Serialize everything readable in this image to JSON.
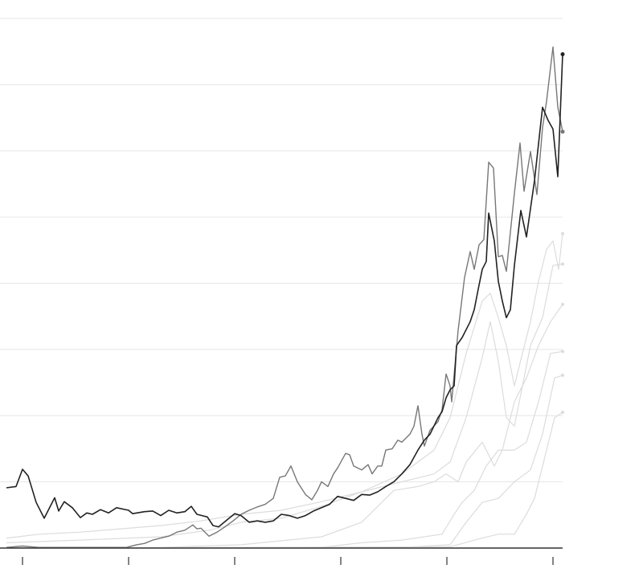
{
  "chart_data": {
    "type": "line",
    "title": "",
    "xlabel": "",
    "ylabel": "",
    "xlim": [
      0,
      692
    ],
    "ylim": [
      0,
      80
    ],
    "x_ticks": [
      20,
      152,
      284,
      416,
      548,
      680
    ],
    "x_tick_labels": [],
    "y_gridlines": [
      10,
      20,
      30,
      40,
      50,
      60,
      70,
      80
    ],
    "y_tick_labels": [],
    "grid": true,
    "legend": "none",
    "colors": {
      "highlight_primary": "#222222",
      "highlight_secondary": "#777777",
      "background_series": "#dcdcdc",
      "grid": "#e6e6e6",
      "baseline": "#333333"
    },
    "series": [
      {
        "role": "background",
        "points": [
          [
            0,
            1.5
          ],
          [
            42,
            2.1
          ],
          [
            92,
            2.4
          ],
          [
            142,
            2.9
          ],
          [
            192,
            3.4
          ],
          [
            242,
            4.1
          ],
          [
            292,
            5.1
          ],
          [
            342,
            5.7
          ],
          [
            392,
            7.0
          ],
          [
            442,
            8.5
          ],
          [
            492,
            11.2
          ],
          [
            532,
            14.8
          ],
          [
            552,
            19.7
          ],
          [
            572,
            29.4
          ],
          [
            592,
            37.3
          ],
          [
            602,
            38.5
          ],
          [
            612,
            34.8
          ],
          [
            622,
            30.6
          ],
          [
            632,
            24.5
          ],
          [
            642,
            29.4
          ],
          [
            652,
            34.2
          ],
          [
            662,
            40.3
          ],
          [
            672,
            45.1
          ],
          [
            680,
            46.4
          ],
          [
            687,
            42.1
          ],
          [
            692,
            47.5
          ]
        ]
      },
      {
        "role": "background",
        "points": [
          [
            0,
            0.8
          ],
          [
            92,
            1.2
          ],
          [
            192,
            1.7
          ],
          [
            252,
            2.7
          ],
          [
            292,
            3.9
          ],
          [
            342,
            4.5
          ],
          [
            392,
            6.3
          ],
          [
            442,
            8.5
          ],
          [
            492,
            10.0
          ],
          [
            512,
            10.6
          ],
          [
            532,
            11.2
          ],
          [
            552,
            13.0
          ],
          [
            572,
            19.7
          ],
          [
            592,
            28.8
          ],
          [
            602,
            34.2
          ],
          [
            612,
            28.2
          ],
          [
            622,
            19.7
          ],
          [
            632,
            18.4
          ],
          [
            642,
            24.5
          ],
          [
            652,
            30.6
          ],
          [
            667,
            34.8
          ],
          [
            680,
            42.7
          ],
          [
            692,
            42.9
          ]
        ]
      },
      {
        "role": "background",
        "points": [
          [
            0,
            0
          ],
          [
            192,
            0.1
          ],
          [
            292,
            0.5
          ],
          [
            392,
            1.7
          ],
          [
            442,
            3.9
          ],
          [
            482,
            8.7
          ],
          [
            512,
            9.3
          ],
          [
            532,
            10.0
          ],
          [
            547,
            11.2
          ],
          [
            562,
            10.0
          ],
          [
            572,
            13.0
          ],
          [
            592,
            16.0
          ],
          [
            607,
            12.4
          ],
          [
            617,
            14.8
          ],
          [
            632,
            22.1
          ],
          [
            647,
            25.7
          ],
          [
            662,
            30.6
          ],
          [
            677,
            34.2
          ],
          [
            692,
            36.8
          ]
        ]
      },
      {
        "role": "background",
        "points": [
          [
            0,
            0
          ],
          [
            392,
            0.1
          ],
          [
            442,
            0.8
          ],
          [
            492,
            1.2
          ],
          [
            542,
            2.1
          ],
          [
            557,
            5.1
          ],
          [
            567,
            6.9
          ],
          [
            582,
            8.7
          ],
          [
            597,
            12.4
          ],
          [
            612,
            14.8
          ],
          [
            632,
            14.8
          ],
          [
            647,
            16.0
          ],
          [
            662,
            22.1
          ],
          [
            677,
            29.4
          ],
          [
            692,
            29.7
          ]
        ]
      },
      {
        "role": "background",
        "points": [
          [
            0,
            0
          ],
          [
            492,
            0.1
          ],
          [
            552,
            0.5
          ],
          [
            572,
            3.9
          ],
          [
            592,
            6.9
          ],
          [
            612,
            7.5
          ],
          [
            632,
            10.0
          ],
          [
            652,
            11.8
          ],
          [
            667,
            17.2
          ],
          [
            682,
            25.7
          ],
          [
            692,
            26.1
          ]
        ]
      },
      {
        "role": "background",
        "points": [
          [
            0,
            0
          ],
          [
            552,
            0.2
          ],
          [
            592,
            1.5
          ],
          [
            612,
            2.1
          ],
          [
            632,
            2.1
          ],
          [
            647,
            5.1
          ],
          [
            657,
            7.5
          ],
          [
            672,
            14.8
          ],
          [
            682,
            19.7
          ],
          [
            692,
            20.5
          ]
        ]
      },
      {
        "role": "secondary",
        "points": [
          [
            0,
            0.1
          ],
          [
            20,
            0.3
          ],
          [
            40,
            0.1
          ],
          [
            150,
            0.1
          ],
          [
            152,
            0.2
          ],
          [
            162,
            0.5
          ],
          [
            172,
            0.7
          ],
          [
            182,
            1.2
          ],
          [
            192,
            1.5
          ],
          [
            202,
            1.8
          ],
          [
            212,
            2.4
          ],
          [
            222,
            2.7
          ],
          [
            232,
            3.5
          ],
          [
            237,
            2.9
          ],
          [
            242,
            3.0
          ],
          [
            247,
            2.4
          ],
          [
            252,
            1.8
          ],
          [
            262,
            2.4
          ],
          [
            272,
            3.2
          ],
          [
            282,
            4.1
          ],
          [
            292,
            5.1
          ],
          [
            302,
            5.7
          ],
          [
            312,
            6.2
          ],
          [
            322,
            6.6
          ],
          [
            332,
            7.5
          ],
          [
            340,
            10.7
          ],
          [
            347,
            10.9
          ],
          [
            354,
            12.4
          ],
          [
            362,
            10.0
          ],
          [
            372,
            8.1
          ],
          [
            380,
            7.3
          ],
          [
            387,
            8.7
          ],
          [
            392,
            10.0
          ],
          [
            400,
            9.3
          ],
          [
            407,
            11.2
          ],
          [
            412,
            12.1
          ],
          [
            422,
            14.3
          ],
          [
            427,
            14.1
          ],
          [
            432,
            12.4
          ],
          [
            442,
            11.8
          ],
          [
            450,
            12.6
          ],
          [
            455,
            11.2
          ],
          [
            462,
            12.4
          ],
          [
            467,
            12.4
          ],
          [
            472,
            14.8
          ],
          [
            480,
            15.0
          ],
          [
            487,
            16.3
          ],
          [
            492,
            16.0
          ],
          [
            502,
            17.2
          ],
          [
            507,
            18.4
          ],
          [
            512,
            21.5
          ],
          [
            517,
            17.2
          ],
          [
            520,
            15.4
          ],
          [
            527,
            17.8
          ],
          [
            537,
            19.1
          ],
          [
            542,
            20.9
          ],
          [
            547,
            26.3
          ],
          [
            552,
            24.5
          ],
          [
            554,
            22.1
          ],
          [
            562,
            32.9
          ],
          [
            570,
            40.9
          ],
          [
            577,
            44.8
          ],
          [
            582,
            42.1
          ],
          [
            588,
            45.8
          ],
          [
            594,
            46.6
          ],
          [
            600,
            58.3
          ],
          [
            606,
            57.4
          ],
          [
            612,
            44.0
          ],
          [
            617,
            44.2
          ],
          [
            622,
            41.8
          ],
          [
            632,
            53.6
          ],
          [
            639,
            61.2
          ],
          [
            644,
            53.9
          ],
          [
            652,
            59.9
          ],
          [
            660,
            53.4
          ],
          [
            667,
            63.5
          ],
          [
            672,
            67.5
          ],
          [
            680,
            75.7
          ],
          [
            686,
            66.6
          ],
          [
            692,
            62.9
          ]
        ]
      },
      {
        "role": "primary",
        "points": [
          [
            0,
            9.1
          ],
          [
            12,
            9.3
          ],
          [
            20,
            11.9
          ],
          [
            27,
            10.9
          ],
          [
            37,
            6.9
          ],
          [
            47,
            4.5
          ],
          [
            60,
            7.6
          ],
          [
            65,
            5.6
          ],
          [
            72,
            7.0
          ],
          [
            82,
            6.1
          ],
          [
            92,
            4.6
          ],
          [
            100,
            5.3
          ],
          [
            107,
            5.1
          ],
          [
            117,
            5.8
          ],
          [
            127,
            5.3
          ],
          [
            137,
            6.1
          ],
          [
            152,
            5.7
          ],
          [
            157,
            5.2
          ],
          [
            172,
            5.5
          ],
          [
            182,
            5.6
          ],
          [
            192,
            4.9
          ],
          [
            202,
            5.7
          ],
          [
            212,
            5.3
          ],
          [
            222,
            5.5
          ],
          [
            230,
            6.3
          ],
          [
            237,
            5.1
          ],
          [
            250,
            4.7
          ],
          [
            257,
            3.4
          ],
          [
            264,
            3.2
          ],
          [
            277,
            4.5
          ],
          [
            284,
            5.2
          ],
          [
            292,
            4.9
          ],
          [
            302,
            3.9
          ],
          [
            312,
            4.1
          ],
          [
            322,
            3.9
          ],
          [
            332,
            4.1
          ],
          [
            342,
            5.1
          ],
          [
            352,
            4.9
          ],
          [
            362,
            4.5
          ],
          [
            372,
            4.9
          ],
          [
            382,
            5.6
          ],
          [
            392,
            6.1
          ],
          [
            402,
            6.6
          ],
          [
            412,
            7.8
          ],
          [
            422,
            7.5
          ],
          [
            432,
            7.2
          ],
          [
            442,
            8.1
          ],
          [
            452,
            8.0
          ],
          [
            462,
            8.5
          ],
          [
            472,
            9.3
          ],
          [
            482,
            10.0
          ],
          [
            492,
            11.2
          ],
          [
            502,
            12.6
          ],
          [
            512,
            14.8
          ],
          [
            520,
            16.3
          ],
          [
            527,
            17.2
          ],
          [
            537,
            19.7
          ],
          [
            542,
            20.6
          ],
          [
            547,
            22.7
          ],
          [
            552,
            23.9
          ],
          [
            557,
            24.5
          ],
          [
            560,
            30.6
          ],
          [
            567,
            31.8
          ],
          [
            577,
            34.2
          ],
          [
            582,
            36.0
          ],
          [
            587,
            39.1
          ],
          [
            592,
            42.1
          ],
          [
            597,
            43.3
          ],
          [
            600,
            50.6
          ],
          [
            607,
            46.4
          ],
          [
            612,
            40.3
          ],
          [
            617,
            37.3
          ],
          [
            622,
            34.8
          ],
          [
            627,
            36.0
          ],
          [
            632,
            42.7
          ],
          [
            640,
            51.0
          ],
          [
            647,
            47.0
          ],
          [
            657,
            55.5
          ],
          [
            667,
            66.6
          ],
          [
            674,
            64.6
          ],
          [
            680,
            63.3
          ],
          [
            686,
            56.1
          ],
          [
            692,
            74.6
          ]
        ]
      }
    ]
  }
}
